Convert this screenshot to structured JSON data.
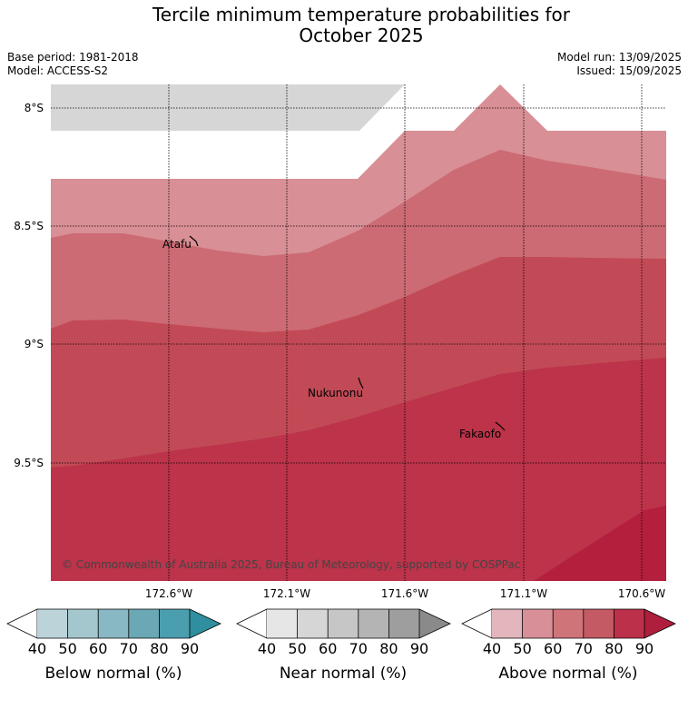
{
  "title_line1": "Tercile minimum temperature probabilities for",
  "title_line2": "October 2025",
  "base_period": "Base period: 1981-2018",
  "model": "Model: ACCESS-S2",
  "model_run": "Model run: 13/09/2025",
  "issued": "Issued: 15/09/2025",
  "copyright": "© Commonwealth of Australia 2025, Bureau of Meteorology, supported by COSPPac",
  "lat_labels": [
    "8°S",
    "8.5°S",
    "9°S",
    "9.5°S"
  ],
  "lon_labels": [
    "172.6°W",
    "172.1°W",
    "171.6°W",
    "171.1°W",
    "170.6°W"
  ],
  "places": [
    {
      "name": "Atafu"
    },
    {
      "name": "Nukunonu"
    },
    {
      "name": "Fakaofo"
    }
  ],
  "map_colors": {
    "grey_region": "#d6d6d6",
    "above_50": "#d88f96",
    "above_60": "#cc6b73",
    "above_70": "#c24a56",
    "above_80": "#bc334a",
    "above_90": "#b41f3e"
  },
  "colorbars": [
    {
      "label": "Below normal (%)",
      "ticks": [
        "40",
        "50",
        "60",
        "70",
        "80",
        "90"
      ],
      "colors": [
        "#ffffff",
        "#bbd3d9",
        "#a4c6cd",
        "#88b8c3",
        "#6aa8b5",
        "#4a9eae",
        "#2f8f9f"
      ]
    },
    {
      "label": "Near normal (%)",
      "ticks": [
        "40",
        "50",
        "60",
        "70",
        "80",
        "90"
      ],
      "colors": [
        "#ffffff",
        "#e6e6e6",
        "#d6d6d6",
        "#c6c6c6",
        "#b4b4b4",
        "#9e9e9e",
        "#8a8a8a"
      ]
    },
    {
      "label": "Above normal (%)",
      "ticks": [
        "40",
        "50",
        "60",
        "70",
        "80",
        "90"
      ],
      "colors": [
        "#ffffff",
        "#e2b6bc",
        "#d98f97",
        "#cf7479",
        "#c45a63",
        "#bc3149",
        "#b01e3d"
      ]
    }
  ]
}
